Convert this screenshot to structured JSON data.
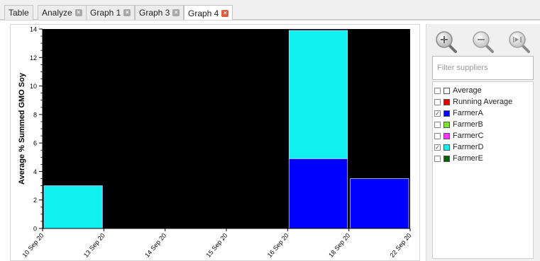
{
  "tabs": [
    {
      "label": "Table",
      "closable": false
    },
    {
      "label": "Analyze",
      "closable": true
    },
    {
      "label": "Graph 1",
      "closable": true
    },
    {
      "label": "Graph 3",
      "closable": true
    },
    {
      "label": "Graph 4",
      "closable": true,
      "active": true
    }
  ],
  "sidebar": {
    "zoom_in_icon": "zoom-in-icon",
    "zoom_out_icon": "zoom-out-icon",
    "zoom_fit_icon": "zoom-fit-icon",
    "filter_placeholder": "Filter suppliers",
    "filter_value": "",
    "suppliers": [
      {
        "label": "Average",
        "checked": false,
        "color": "#ffffff"
      },
      {
        "label": "Running Average",
        "checked": false,
        "color": "#e00000"
      },
      {
        "label": "FarmerA",
        "checked": true,
        "color": "#0000ff"
      },
      {
        "label": "FarmerB",
        "checked": false,
        "color": "#7fe030"
      },
      {
        "label": "FarmerC",
        "checked": false,
        "color": "#ff33ff"
      },
      {
        "label": "FarmerD",
        "checked": true,
        "color": "#11f0ee"
      },
      {
        "label": "FarmerE",
        "checked": false,
        "color": "#006000"
      }
    ]
  },
  "chart_data": {
    "type": "bar",
    "stacked": true,
    "title": "",
    "xlabel": "",
    "ylabel": "Average % Summed GMO Soy",
    "ylim": [
      0,
      14
    ],
    "yticks": [
      0,
      2,
      4,
      6,
      8,
      10,
      12,
      14
    ],
    "background": "#000000",
    "grid": false,
    "x_ticks": [
      "10 Sep 20",
      "13 Sep 20",
      "14 Sep 20",
      "15 Sep 20",
      "16 Sep 20",
      "18 Sep 20",
      "22 Sep 20"
    ],
    "bars": [
      {
        "start": "10 Sep 20",
        "end": "13 Sep 20",
        "segments": [
          {
            "series": "FarmerD",
            "value": 3.0
          }
        ]
      },
      {
        "start": "16 Sep 20",
        "end": "18 Sep 20",
        "segments": [
          {
            "series": "FarmerA",
            "value": 4.9
          },
          {
            "series": "FarmerD",
            "value": 9.0
          }
        ]
      },
      {
        "start": "18 Sep 20",
        "end": "22 Sep 20",
        "segments": [
          {
            "series": "FarmerA",
            "value": 3.5
          }
        ]
      }
    ],
    "series_colors": {
      "FarmerA": "#0000ff",
      "FarmerD": "#11f0ee"
    }
  }
}
